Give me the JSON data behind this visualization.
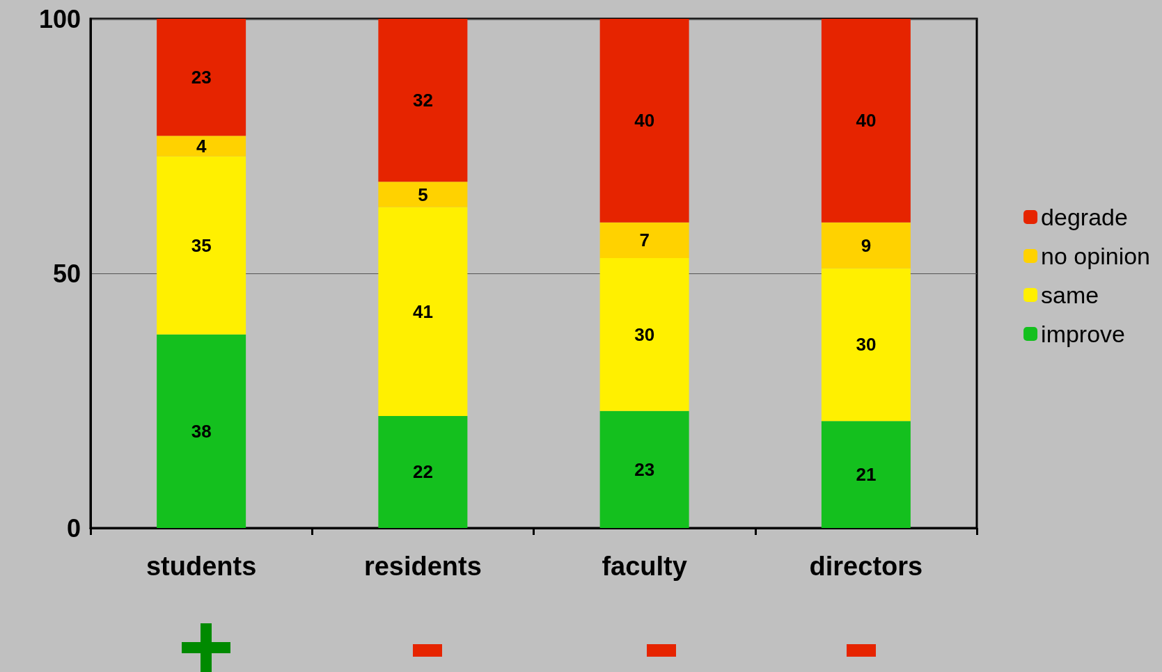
{
  "chart_data": {
    "type": "bar",
    "stacked": true,
    "categories": [
      "students",
      "residents",
      "faculty",
      "directors"
    ],
    "series": [
      {
        "name": "improve",
        "color": "#14c01e",
        "values": [
          38,
          22,
          23,
          21
        ]
      },
      {
        "name": "same",
        "color": "#fff000",
        "values": [
          35,
          41,
          30,
          30
        ]
      },
      {
        "name": "no opinion",
        "color": "#ffd200",
        "values": [
          4,
          5,
          7,
          9
        ]
      },
      {
        "name": "degrade",
        "color": "#e62400",
        "values": [
          23,
          32,
          40,
          40
        ]
      }
    ],
    "ylim": [
      0,
      100
    ],
    "yticks": [
      0,
      50,
      100
    ],
    "grid": "y",
    "legend": "right",
    "data_labels": true
  }
}
